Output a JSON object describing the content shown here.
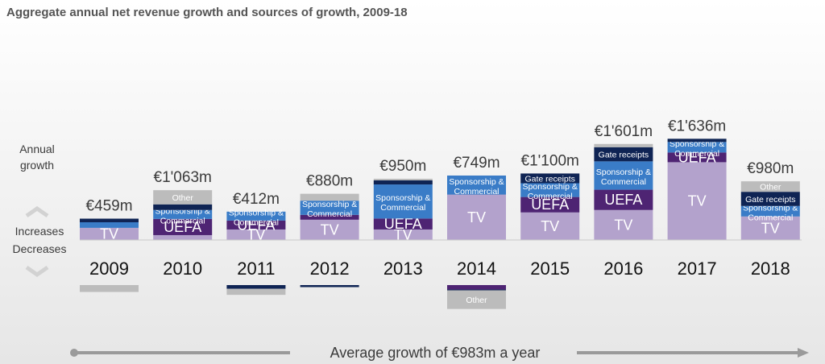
{
  "chart_data": {
    "type": "bar",
    "title": "Aggregate annual net revenue growth and sources of growth, 2009-18",
    "annual_growth_label": "Annual growth",
    "increases_label": "Increases",
    "decreases_label": "Decreases",
    "footer": "Average growth of €983m a year",
    "unit": "€m",
    "colors": {
      "TV": "#b3a2cc",
      "UEFA": "#4e2473",
      "Sponsorship & Commercial": "#3a7cc7",
      "Gate receipts": "#0f2454",
      "Other": "#bcbcbc"
    },
    "categories": [
      "2009",
      "2010",
      "2011",
      "2012",
      "2013",
      "2014",
      "2015",
      "2016",
      "2017",
      "2018"
    ],
    "totals": [
      "€459m",
      "€1'063m",
      "€412m",
      "€880m",
      "€950m",
      "€749m",
      "€1'100m",
      "€1'601m",
      "€1'636m",
      "€980m"
    ],
    "bars": [
      {
        "year": "2009",
        "increases": [
          {
            "source": "TV",
            "label": "TV",
            "value": 185
          },
          {
            "source": "Sponsorship & Commercial",
            "label": "Sponsorship & Commercial",
            "value": 85
          },
          {
            "source": "Gate receipts",
            "label": "Gate receipts",
            "value": 55
          }
        ],
        "decreases": [
          {
            "source": "Other",
            "label": "Other",
            "value": 105
          }
        ]
      },
      {
        "year": "2010",
        "increases": [
          {
            "source": "TV",
            "label": "TV",
            "value": 74
          },
          {
            "source": "UEFA",
            "label": "UEFA",
            "value": 247
          },
          {
            "source": "Sponsorship & Commercial",
            "label": "Sponsorship & Commercial",
            "value": 136
          },
          {
            "source": "Gate receipts",
            "label": "Gate receipts",
            "value": 86
          },
          {
            "source": "Other",
            "label": "Other",
            "value": 216
          }
        ],
        "decreases": []
      },
      {
        "year": "2011",
        "increases": [
          {
            "source": "TV",
            "label": "TV",
            "value": 160
          },
          {
            "source": "UEFA",
            "label": "UEFA",
            "value": 136
          },
          {
            "source": "Sponsorship & Commercial",
            "label": "Sponsorship & Commercial",
            "value": 136
          }
        ],
        "decreases": [
          {
            "source": "Gate receipts",
            "label": "Gate receipts",
            "value": 56
          },
          {
            "source": "Other",
            "label": "Other",
            "value": 93
          }
        ]
      },
      {
        "year": "2012",
        "increases": [
          {
            "source": "TV",
            "label": "TV",
            "value": 309
          },
          {
            "source": "UEFA",
            "label": "UEFA",
            "value": 74
          },
          {
            "source": "Sponsorship & Commercial",
            "label": "Sponsorship & Commercial",
            "value": 216
          },
          {
            "source": "Other",
            "label": "Other",
            "value": 105
          }
        ],
        "decreases": [
          {
            "source": "Gate receipts",
            "label": "Gate receipts",
            "value": 31
          }
        ]
      },
      {
        "year": "2013",
        "increases": [
          {
            "source": "TV",
            "label": "TV",
            "value": 160
          },
          {
            "source": "UEFA",
            "label": "UEFA",
            "value": 167
          },
          {
            "source": "Sponsorship & Commercial",
            "label": "Sponsorship & Commercial",
            "value": 519
          },
          {
            "source": "Gate receipts",
            "label": "Gate receipts",
            "value": 62
          },
          {
            "source": "Other",
            "label": "Other",
            "value": 25
          }
        ],
        "decreases": []
      },
      {
        "year": "2014",
        "increases": [
          {
            "source": "TV",
            "label": "TV",
            "value": 691
          },
          {
            "source": "UEFA",
            "label": "UEFA",
            "value": -1
          },
          {
            "source": "Sponsorship & Commercial",
            "label": "Sponsorship & Commercial",
            "value": 290
          }
        ],
        "decreases": [
          {
            "source": "UEFA",
            "label": "UEFA",
            "value": 68
          },
          {
            "source": "Gate receipts",
            "label": "Gate receipts",
            "value": 12
          },
          {
            "source": "Other",
            "label": "Other",
            "value": 284
          }
        ]
      },
      {
        "year": "2015",
        "increases": [
          {
            "source": "TV",
            "label": "TV",
            "value": 420
          },
          {
            "source": "UEFA",
            "label": "UEFA",
            "value": 235
          },
          {
            "source": "Sponsorship & Commercial",
            "label": "Sponsorship & Commercial",
            "value": 210
          },
          {
            "source": "Gate receipts",
            "label": "Gate receipts",
            "value": 148
          }
        ],
        "decreases": []
      },
      {
        "year": "2016",
        "increases": [
          {
            "source": "TV",
            "label": "TV",
            "value": 457
          },
          {
            "source": "UEFA",
            "label": "UEFA",
            "value": 309
          },
          {
            "source": "Sponsorship & Commercial",
            "label": "Sponsorship & Commercial",
            "value": 432
          },
          {
            "source": "Gate receipts",
            "label": "Gate receipts",
            "value": 216
          },
          {
            "source": "Other",
            "label": "Other",
            "value": 49
          }
        ],
        "decreases": []
      },
      {
        "year": "2017",
        "increases": [
          {
            "source": "TV",
            "label": "TV",
            "value": 1185
          },
          {
            "source": "UEFA",
            "label": "UEFA",
            "value": 148
          },
          {
            "source": "Sponsorship & Commercial",
            "label": "Sponsorship & Commercial",
            "value": 160
          },
          {
            "source": "Gate receipts",
            "label": "Gate receipts",
            "value": 49
          }
        ],
        "decreases": []
      },
      {
        "year": "2018",
        "increases": [
          {
            "source": "TV",
            "label": "TV",
            "value": 358
          },
          {
            "source": "Sponsorship & Commercial",
            "label": "Sponsorship & Commercial",
            "value": 160
          },
          {
            "source": "Gate receipts",
            "label": "Gate receipts",
            "value": 216
          },
          {
            "source": "Other",
            "label": "Other",
            "value": 160
          }
        ],
        "decreases": []
      }
    ]
  }
}
